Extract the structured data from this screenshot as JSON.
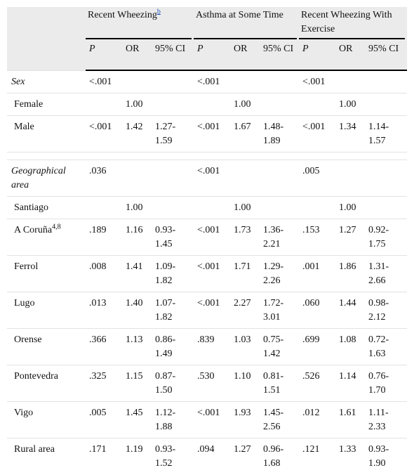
{
  "header": {
    "groups": [
      {
        "label": "Recent Wheezing",
        "sup": "b",
        "columns": [
          "P",
          "OR",
          "95% CI"
        ]
      },
      {
        "label": "Asthma at Some Time",
        "columns": [
          "P",
          "OR",
          "95% CI"
        ]
      },
      {
        "label": "Recent Wheezing With Exercise",
        "columns": [
          "P",
          "OR",
          "95% CI"
        ]
      }
    ]
  },
  "sections": [
    {
      "label": "Sex",
      "values": [
        "<.001",
        null,
        null,
        "<.001",
        null,
        null,
        "<.001",
        null,
        null
      ],
      "rows": [
        {
          "label": "Female",
          "values": [
            null,
            "1.00",
            null,
            null,
            "1.00",
            null,
            null,
            "1.00",
            null
          ]
        },
        {
          "label": "Male",
          "values": [
            "<.001",
            "1.42",
            "1.27-1.59",
            "<.001",
            "1.67",
            "1.48-1.89",
            "<.001",
            "1.34",
            "1.14-1.57"
          ]
        }
      ]
    },
    {
      "label": "Geographical area",
      "values": [
        ".036",
        null,
        null,
        "<.001",
        null,
        null,
        ".005",
        null,
        null
      ],
      "rows": [
        {
          "label": "Santiago",
          "values": [
            null,
            "1.00",
            null,
            null,
            "1.00",
            null,
            null,
            "1.00",
            null
          ]
        },
        {
          "label": "A Coruña",
          "sup": "4,8",
          "values": [
            ".189",
            "1.16",
            "0.93-1.45",
            "<.001",
            "1.73",
            "1.36-2.21",
            ".153",
            "1.27",
            "0.92-1.75"
          ]
        },
        {
          "label": "Ferrol",
          "values": [
            ".008",
            "1.41",
            "1.09-1.82",
            "<.001",
            "1.71",
            "1.29-2.26",
            ".001",
            "1.86",
            "1.31-2.66"
          ]
        },
        {
          "label": "Lugo",
          "values": [
            ".013",
            "1.40",
            "1.07-1.82",
            "<.001",
            "2.27",
            "1.72-3.01",
            ".060",
            "1.44",
            "0.98-2.12"
          ]
        },
        {
          "label": "Orense",
          "values": [
            ".366",
            "1.13",
            "0.86-1.49",
            ".839",
            "1.03",
            "0.75-1.42",
            ".699",
            "1.08",
            "0.72-1.63"
          ]
        },
        {
          "label": "Pontevedra",
          "values": [
            ".325",
            "1.15",
            "0.87-1.50",
            ".530",
            "1.10",
            "0.81-1.51",
            ".526",
            "1.14",
            "0.76-1.70"
          ]
        },
        {
          "label": "Vigo",
          "values": [
            ".005",
            "1.45",
            "1.12-1.88",
            "<.001",
            "1.93",
            "1.45-2.56",
            ".012",
            "1.61",
            "1.11-2.33"
          ]
        },
        {
          "label": "Rural area",
          "values": [
            ".171",
            "1.19",
            "0.93-1.52",
            ".094",
            "1.27",
            "0.96-1.68",
            ".121",
            "1.33",
            "0.93-1.90"
          ]
        }
      ]
    }
  ]
}
